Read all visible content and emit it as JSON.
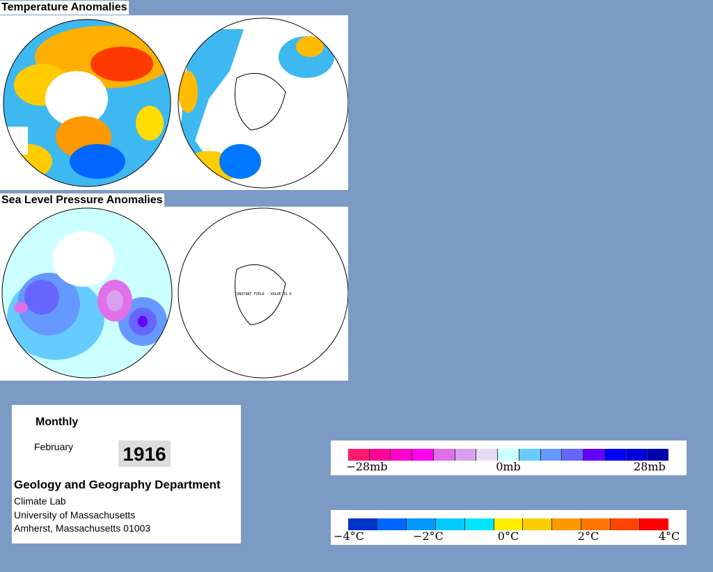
{
  "maps": [
    {
      "title": "Temperature Anomalies"
    },
    {
      "title": "Sea Level Pressure Anomalies",
      "note": "CONSTANT FIELD - VALUE IS 0"
    }
  ],
  "info": {
    "period": "Monthly",
    "month": "February",
    "year": "1916",
    "department": "Geology and Geography Department",
    "lab": "Climate Lab",
    "university": "University of Massachusetts",
    "address": "Amherst, Massachusetts 01003"
  },
  "legends": [
    {
      "colors": [
        "#ff1a6e",
        "#ff0099",
        "#ff00cc",
        "#ff00ee",
        "#e070e8",
        "#d9a0ef",
        "#e6ddf5",
        "#ccffff",
        "#66ccff",
        "#6699ff",
        "#6666ff",
        "#6600ff",
        "#0000ff",
        "#0000dd",
        "#0000aa"
      ],
      "labels": [
        "−28mb",
        "0mb",
        "28mb"
      ]
    },
    {
      "colors": [
        "#0033cc",
        "#0066ff",
        "#0099ff",
        "#00ccff",
        "#00e5ff",
        "#ffee00",
        "#ffcc00",
        "#ff9900",
        "#ff7700",
        "#ff4400",
        "#ff0000"
      ],
      "labels": [
        "−4°C",
        "−2°C",
        "0°C",
        "2°C",
        "4°C"
      ]
    }
  ]
}
